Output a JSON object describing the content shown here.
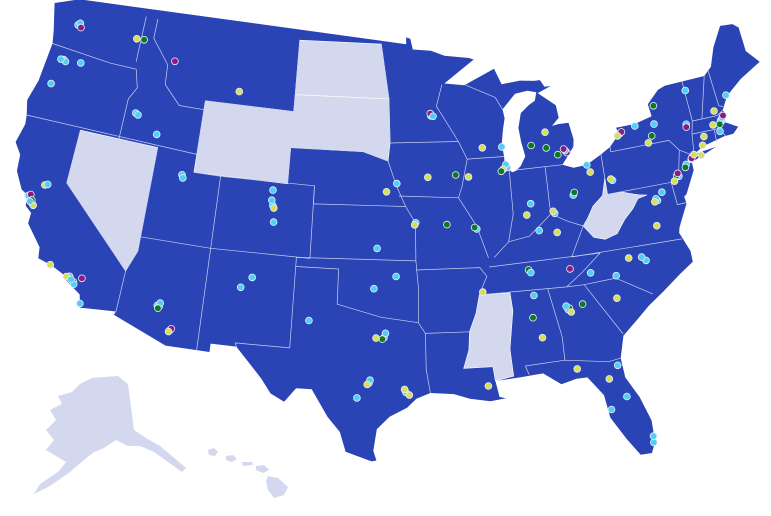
{
  "map": {
    "colors": {
      "land": "#2a44b6",
      "land_highlight_off": "#d3d8ee",
      "state_border": "#c9d0f0",
      "water": "#ffffff"
    },
    "marker_categories": {
      "cyan": "#4fd0f2",
      "yellow": "#d6df5a",
      "green": "#0d7a1e",
      "magenta": "#8e1a7e"
    },
    "markers": [
      [
        -122.33,
        47.6,
        "cyan"
      ],
      [
        -122.2,
        47.72,
        "cyan"
      ],
      [
        -122.05,
        47.5,
        "magenta"
      ],
      [
        -117.4,
        47.66,
        "yellow"
      ],
      [
        -116.8,
        47.7,
        "green"
      ],
      [
        -113.99,
        46.87,
        "magenta"
      ],
      [
        -122.68,
        45.52,
        "cyan"
      ],
      [
        -122.5,
        45.45,
        "cyan"
      ],
      [
        -122.9,
        45.5,
        "cyan"
      ],
      [
        -123.1,
        44.05,
        "cyan"
      ],
      [
        -121.3,
        45.6,
        "cyan"
      ],
      [
        -116.2,
        43.62,
        "cyan"
      ],
      [
        -116.0,
        43.55,
        "cyan"
      ],
      [
        -114.3,
        42.7,
        "cyan"
      ],
      [
        -108.5,
        45.78,
        "yellow"
      ],
      [
        -122.42,
        37.78,
        "cyan"
      ],
      [
        -122.0,
        37.4,
        "cyan"
      ],
      [
        -122.27,
        37.87,
        "magenta"
      ],
      [
        -121.9,
        37.33,
        "yellow"
      ],
      [
        -122.1,
        37.6,
        "green"
      ],
      [
        -121.49,
        38.58,
        "yellow"
      ],
      [
        -121.3,
        38.65,
        "cyan"
      ],
      [
        -122.2,
        37.5,
        "cyan"
      ],
      [
        -118.24,
        34.05,
        "cyan"
      ],
      [
        -118.45,
        34.0,
        "yellow"
      ],
      [
        -117.9,
        33.8,
        "green"
      ],
      [
        -117.16,
        32.72,
        "cyan"
      ],
      [
        -117.85,
        33.68,
        "cyan"
      ],
      [
        -119.7,
        34.42,
        "yellow"
      ],
      [
        -117.4,
        34.1,
        "magenta"
      ],
      [
        -118.1,
        33.9,
        "cyan"
      ],
      [
        -112.07,
        33.45,
        "cyan"
      ],
      [
        -111.93,
        33.42,
        "green"
      ],
      [
        -111.9,
        33.6,
        "cyan"
      ],
      [
        -112.0,
        33.3,
        "green"
      ],
      [
        -110.97,
        32.22,
        "cyan"
      ],
      [
        -110.9,
        32.3,
        "magenta"
      ],
      [
        -111.05,
        32.12,
        "yellow"
      ],
      [
        -111.89,
        40.76,
        "cyan"
      ],
      [
        -111.8,
        40.6,
        "cyan"
      ],
      [
        -104.99,
        39.74,
        "cyan"
      ],
      [
        -105.1,
        40.02,
        "cyan"
      ],
      [
        -104.9,
        39.6,
        "yellow"
      ],
      [
        -104.82,
        38.83,
        "cyan"
      ],
      [
        -105.08,
        40.58,
        "cyan"
      ],
      [
        -106.65,
        35.08,
        "cyan"
      ],
      [
        -105.94,
        35.69,
        "cyan"
      ],
      [
        -96.8,
        32.78,
        "cyan"
      ],
      [
        -96.9,
        32.7,
        "green"
      ],
      [
        -97.33,
        32.75,
        "yellow"
      ],
      [
        -96.7,
        33.02,
        "cyan"
      ],
      [
        -97.74,
        30.27,
        "cyan"
      ],
      [
        -97.68,
        30.42,
        "cyan"
      ],
      [
        -97.85,
        30.18,
        "yellow"
      ],
      [
        -98.49,
        29.42,
        "cyan"
      ],
      [
        -95.37,
        29.76,
        "cyan"
      ],
      [
        -95.45,
        29.92,
        "yellow"
      ],
      [
        -95.15,
        29.6,
        "yellow"
      ],
      [
        -101.85,
        33.58,
        "cyan"
      ],
      [
        -97.52,
        35.47,
        "cyan"
      ],
      [
        -95.99,
        36.15,
        "cyan"
      ],
      [
        -97.34,
        37.69,
        "cyan"
      ],
      [
        -94.58,
        39.1,
        "cyan"
      ],
      [
        -94.65,
        38.98,
        "yellow"
      ],
      [
        -95.94,
        41.26,
        "cyan"
      ],
      [
        -96.7,
        40.81,
        "yellow"
      ],
      [
        -93.27,
        44.98,
        "cyan"
      ],
      [
        -93.3,
        45.1,
        "magenta"
      ],
      [
        -93.09,
        44.95,
        "cyan"
      ],
      [
        -89.4,
        43.07,
        "yellow"
      ],
      [
        -87.91,
        43.04,
        "cyan"
      ],
      [
        -93.62,
        41.59,
        "yellow"
      ],
      [
        -91.53,
        41.66,
        "green"
      ],
      [
        -90.58,
        41.52,
        "yellow"
      ],
      [
        -87.63,
        41.88,
        "cyan"
      ],
      [
        -87.72,
        42.05,
        "cyan"
      ],
      [
        -87.95,
        41.8,
        "yellow"
      ],
      [
        -88.1,
        41.7,
        "green"
      ],
      [
        -90.2,
        38.63,
        "cyan"
      ],
      [
        -90.35,
        38.72,
        "green"
      ],
      [
        -92.33,
        38.95,
        "green"
      ],
      [
        -86.16,
        39.77,
        "cyan"
      ],
      [
        -86.53,
        39.17,
        "yellow"
      ],
      [
        -83.05,
        42.33,
        "magenta"
      ],
      [
        -83.15,
        42.45,
        "cyan"
      ],
      [
        -83.74,
        42.28,
        "green"
      ],
      [
        -83.25,
        42.55,
        "magenta"
      ],
      [
        -85.67,
        42.96,
        "green"
      ],
      [
        -84.55,
        42.73,
        "green"
      ],
      [
        -84.5,
        43.6,
        "yellow"
      ],
      [
        -83.0,
        39.96,
        "cyan"
      ],
      [
        -82.9,
        40.1,
        "green"
      ],
      [
        -81.69,
        41.5,
        "cyan"
      ],
      [
        -81.52,
        41.08,
        "yellow"
      ],
      [
        -84.51,
        39.1,
        "cyan"
      ],
      [
        -84.6,
        39.22,
        "yellow"
      ],
      [
        -85.76,
        38.25,
        "cyan"
      ],
      [
        -84.5,
        38.04,
        "yellow"
      ],
      [
        -86.78,
        36.16,
        "green"
      ],
      [
        -86.65,
        36.0,
        "cyan"
      ],
      [
        -83.92,
        35.96,
        "magenta"
      ],
      [
        -90.05,
        35.15,
        "yellow"
      ],
      [
        -86.8,
        33.52,
        "green"
      ],
      [
        -86.59,
        34.73,
        "cyan"
      ],
      [
        -86.3,
        32.37,
        "yellow"
      ],
      [
        -84.39,
        33.75,
        "cyan"
      ],
      [
        -84.3,
        33.82,
        "green"
      ],
      [
        -84.5,
        33.95,
        "cyan"
      ],
      [
        -84.2,
        33.6,
        "yellow"
      ],
      [
        -83.38,
        33.95,
        "green"
      ],
      [
        -82.46,
        27.95,
        "cyan"
      ],
      [
        -81.38,
        28.54,
        "cyan"
      ],
      [
        -82.32,
        29.65,
        "yellow"
      ],
      [
        -80.19,
        25.77,
        "cyan"
      ],
      [
        -80.14,
        26.12,
        "cyan"
      ],
      [
        -84.28,
        30.44,
        "yellow"
      ],
      [
        -81.66,
        30.33,
        "cyan"
      ],
      [
        -90.07,
        29.95,
        "yellow"
      ],
      [
        -78.64,
        35.78,
        "cyan"
      ],
      [
        -78.9,
        36.0,
        "cyan"
      ],
      [
        -80.84,
        35.23,
        "cyan"
      ],
      [
        -79.79,
        36.07,
        "yellow"
      ],
      [
        -82.55,
        35.6,
        "cyan"
      ],
      [
        -81.03,
        34.0,
        "yellow"
      ],
      [
        -77.44,
        37.54,
        "yellow"
      ],
      [
        -77.04,
        38.9,
        "cyan"
      ],
      [
        -77.12,
        39.0,
        "cyan"
      ],
      [
        -77.25,
        38.85,
        "yellow"
      ],
      [
        -76.61,
        39.29,
        "cyan"
      ],
      [
        -75.16,
        39.95,
        "cyan"
      ],
      [
        -75.3,
        40.02,
        "green"
      ],
      [
        -75.2,
        40.12,
        "magenta"
      ],
      [
        -75.55,
        39.74,
        "yellow"
      ],
      [
        -79.99,
        40.44,
        "cyan"
      ],
      [
        -80.1,
        40.52,
        "yellow"
      ],
      [
        -74.45,
        40.5,
        "cyan"
      ],
      [
        -74.55,
        40.35,
        "green"
      ],
      [
        -74.0,
        40.71,
        "cyan"
      ],
      [
        -73.9,
        40.82,
        "cyan"
      ],
      [
        -73.95,
        40.76,
        "magenta"
      ],
      [
        -73.72,
        40.93,
        "yellow"
      ],
      [
        -73.2,
        40.8,
        "yellow"
      ],
      [
        -78.88,
        42.89,
        "green"
      ],
      [
        -78.7,
        42.98,
        "magenta"
      ],
      [
        -79.05,
        42.8,
        "yellow"
      ],
      [
        -77.61,
        43.16,
        "cyan"
      ],
      [
        -76.15,
        43.05,
        "cyan"
      ],
      [
        -73.76,
        42.65,
        "cyan"
      ],
      [
        -73.8,
        42.5,
        "magenta"
      ],
      [
        -76.5,
        42.44,
        "green"
      ],
      [
        -76.85,
        42.1,
        "yellow"
      ],
      [
        -75.9,
        44.05,
        "green"
      ],
      [
        -72.68,
        41.76,
        "yellow"
      ],
      [
        -72.93,
        41.31,
        "yellow"
      ],
      [
        -71.06,
        42.36,
        "cyan"
      ],
      [
        -71.12,
        42.42,
        "cyan"
      ],
      [
        -71.22,
        42.3,
        "cyan"
      ],
      [
        -70.98,
        42.52,
        "cyan"
      ],
      [
        -70.88,
        42.62,
        "magenta"
      ],
      [
        -71.3,
        42.2,
        "green"
      ],
      [
        -71.41,
        41.82,
        "cyan"
      ],
      [
        -71.8,
        42.26,
        "yellow"
      ],
      [
        -73.21,
        44.48,
        "cyan"
      ],
      [
        -71.46,
        42.99,
        "yellow"
      ],
      [
        -70.26,
        43.66,
        "cyan"
      ]
    ]
  }
}
